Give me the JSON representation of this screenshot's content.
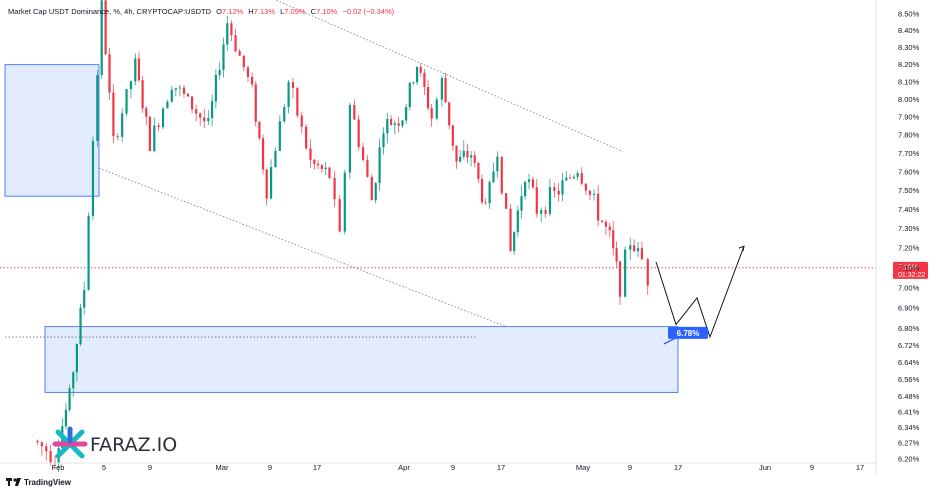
{
  "header": {
    "symbol_name": "Market Cap USDT Dominance, %, 4h, CRYPTOCAP:USDTD",
    "open_label": "O",
    "open": "7.12%",
    "high_label": "H",
    "high": "7.13%",
    "low_label": "L",
    "low": "7.09%",
    "close_label": "C",
    "close": "7.10%",
    "change": "−0.02 (−0.34%)"
  },
  "price_badge": {
    "value": "7.10%",
    "countdown": "01:32:22"
  },
  "target_badge": {
    "value": "6.78%"
  },
  "logo": {
    "text": "FARAZ.IO"
  },
  "footer": {
    "brand": "TradingView"
  },
  "colors": {
    "up": "#089981",
    "down": "#f23645",
    "zone": "#2962ff",
    "badge": "#2962ff",
    "price_line": "#f23645",
    "logo_teal": "#16b8c4",
    "logo_pink": "#e0479e"
  },
  "chart_data": {
    "type": "candlestick",
    "y_axis_labels": [
      "8.50%",
      "8.40%",
      "8.30%",
      "8.20%",
      "8.10%",
      "8.00%",
      "7.90%",
      "7.80%",
      "7.70%",
      "7.60%",
      "7.50%",
      "7.40%",
      "7.30%",
      "7.20%",
      "7.10%",
      "7.00%",
      "6.90%",
      "6.80%",
      "6.72%",
      "6.64%",
      "6.56%",
      "6.48%",
      "6.41%",
      "6.34%",
      "6.27%",
      "6.20%"
    ],
    "x_axis_labels": [
      "Feb",
      "5",
      "9",
      "Mar",
      "9",
      "17",
      "Apr",
      "9",
      "17",
      "May",
      "9",
      "17",
      "Jun",
      "9",
      "17"
    ],
    "ylim": [
      6.2,
      8.52
    ],
    "scale": "log",
    "last_price": 7.1,
    "target_price": 6.78,
    "zones": [
      {
        "name": "supply-zone",
        "high": 8.2,
        "low": 7.47
      },
      {
        "name": "demand-zone",
        "high": 6.81,
        "low": 6.5
      }
    ],
    "support_level": 6.76,
    "channel": {
      "upper": [
        [
          3,
          8.6
        ],
        [
          40,
          7.71
        ]
      ],
      "lower": [
        [
          3,
          7.62
        ],
        [
          40,
          6.81
        ]
      ]
    },
    "projection": [
      [
        42.0,
        7.13
      ],
      [
        43.0,
        6.82
      ],
      [
        44.3,
        6.95
      ],
      [
        45.2,
        6.76
      ],
      [
        47.4,
        7.21
      ]
    ],
    "key_points": [
      [
        -1.5,
        6.28
      ],
      [
        0,
        6.22
      ],
      [
        1,
        6.48
      ],
      [
        2,
        7.0
      ],
      [
        3.2,
        8.55
      ],
      [
        4,
        7.75
      ],
      [
        5.5,
        8.2
      ],
      [
        6.5,
        7.75
      ],
      [
        8,
        8.1
      ],
      [
        10.5,
        7.85
      ],
      [
        11.8,
        8.45
      ],
      [
        13.5,
        8.05
      ],
      [
        14.5,
        7.5
      ],
      [
        16.0,
        8.1
      ],
      [
        17.5,
        7.65
      ],
      [
        18.8,
        7.58
      ],
      [
        19.5,
        7.25
      ],
      [
        20.2,
        7.98
      ],
      [
        21.7,
        7.45
      ],
      [
        22.5,
        7.85
      ],
      [
        23.8,
        7.9
      ],
      [
        24.8,
        8.2
      ],
      [
        25.8,
        7.9
      ],
      [
        26.5,
        8.1
      ],
      [
        27.5,
        7.65
      ],
      [
        28.5,
        7.7
      ],
      [
        29.5,
        7.4
      ],
      [
        30.3,
        7.72
      ],
      [
        31.2,
        7.18
      ],
      [
        32.2,
        7.6
      ],
      [
        33.0,
        7.4
      ],
      [
        34.5,
        7.5
      ],
      [
        35.8,
        7.62
      ],
      [
        37.2,
        7.38
      ],
      [
        38.0,
        7.25
      ],
      [
        38.7,
        7.02
      ],
      [
        39.4,
        7.24
      ],
      [
        40.2,
        7.14
      ],
      [
        40.6,
        7.05
      ],
      [
        41.0,
        7.1
      ]
    ]
  }
}
